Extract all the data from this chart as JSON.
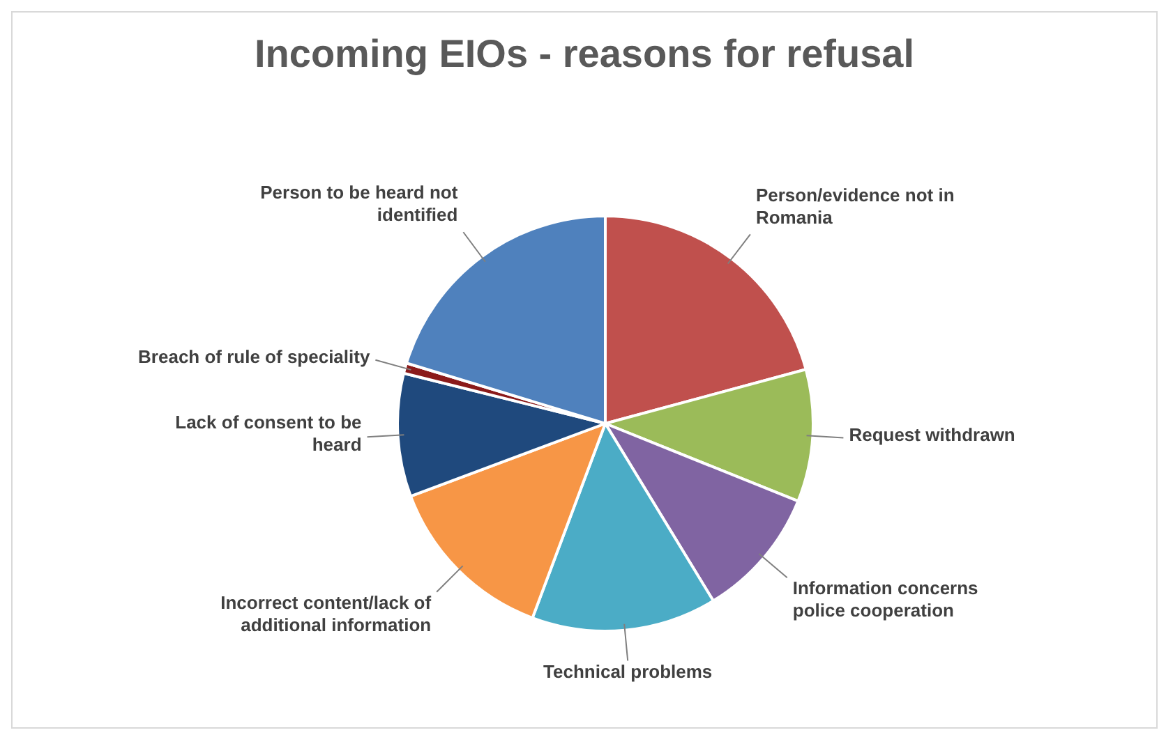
{
  "chart_data": {
    "type": "pie",
    "title": "Incoming EIOs - reasons for refusal",
    "categories": [
      "Person/evidence not in Romania",
      "Request withdrawn",
      "Information concerns police cooperation",
      "Technical problems",
      "Incorrect content/lack of additional information",
      "Lack of consent to be heard",
      "Breach of rule of speciality",
      "Person to be heard not identified"
    ],
    "values": [
      20.8,
      10.3,
      10.2,
      14.4,
      13.6,
      9.6,
      0.8,
      20.3
    ],
    "colors": [
      "#c0504d",
      "#9bbb59",
      "#8064a2",
      "#4bacc6",
      "#f79646",
      "#1f497d",
      "#8b1a1a",
      "#4f81bd"
    ]
  }
}
